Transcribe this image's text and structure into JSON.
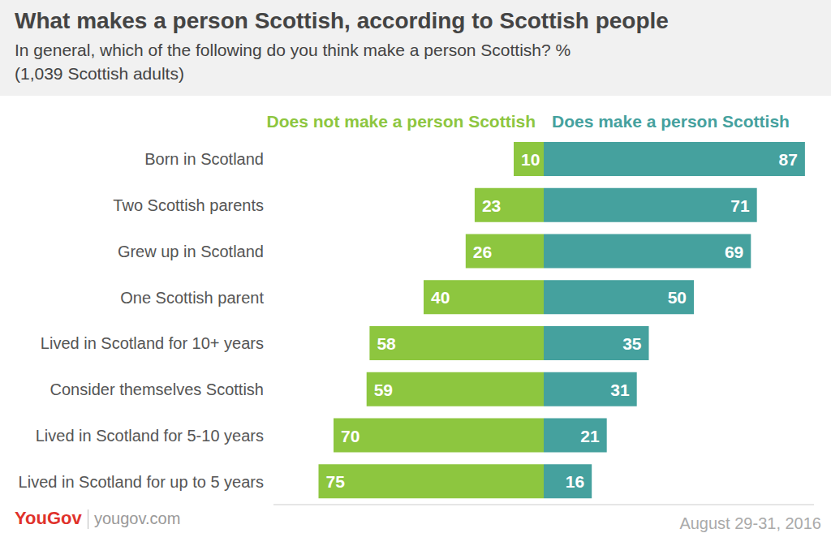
{
  "chart_data": {
    "type": "bar",
    "orientation": "horizontal",
    "title": "What makes a person Scottish, according to Scottish people",
    "subtitle": [
      "In general, which of the following do you think make a person Scottish? %",
      "(1,039 Scottish adults)"
    ],
    "categories": [
      "Born in Scotland",
      "Two Scottish parents",
      "Grew up in Scotland",
      "One Scottish parent",
      "Lived in Scotland for 10+ years",
      "Consider themselves Scottish",
      "Lived in Scotland for 5-10 years",
      "Lived in Scotland for up to 5 years"
    ],
    "series": [
      {
        "name": "Does not make a person Scottish",
        "color": "#8dc63f",
        "values": [
          10,
          23,
          26,
          40,
          58,
          59,
          70,
          75
        ]
      },
      {
        "name": "Does make a person Scottish",
        "color": "#45a19e",
        "values": [
          87,
          71,
          69,
          50,
          35,
          31,
          21,
          16
        ]
      }
    ],
    "xlim": [
      0,
      90
    ],
    "data_labels": true,
    "tick_labels": "y",
    "grid": false,
    "legend": "top",
    "source": "YouGov",
    "source_url": "yougov.com",
    "date": "August 29-31, 2016"
  }
}
